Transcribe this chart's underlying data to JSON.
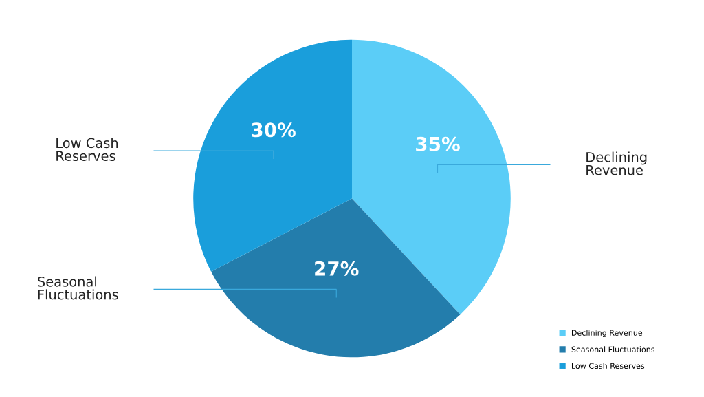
{
  "chart_data": {
    "type": "pie",
    "categories": [
      "Declining Revenue",
      "Seasonal Fluctuations",
      "Low Cash Reserves"
    ],
    "values": [
      35,
      27,
      30
    ],
    "value_labels": [
      "35%",
      "27%",
      "30%"
    ],
    "colors": [
      "#5bcdf7",
      "#237dac",
      "#1a9edb"
    ],
    "legend": "bottom right"
  }
}
